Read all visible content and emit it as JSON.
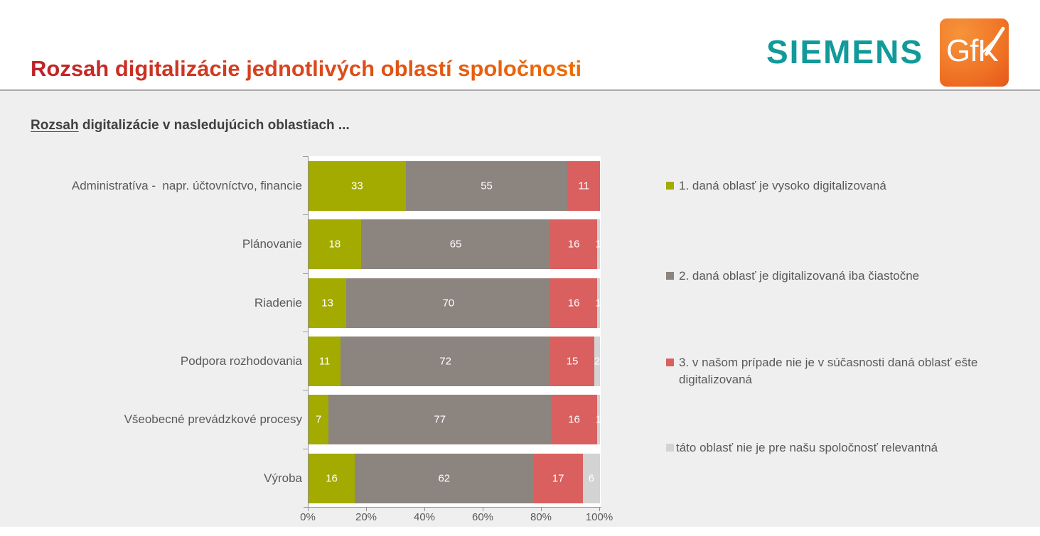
{
  "header": {
    "title": "Rozsah digitalizácie jednotlivých oblastí spoločnosti",
    "siemens_text": "SIEMENS",
    "gfk_text": "GfK"
  },
  "subtitle": {
    "underlined": "Rozsah",
    "rest": " digitalizácie v nasledujúcich oblastiach ..."
  },
  "colors": {
    "title_gradient_start": "#BF2126",
    "title_gradient_end": "#EE6D05",
    "siemens_teal": "#129A9A",
    "gfk_orange": "#EF6F1F",
    "content_background": "#EFEFEF",
    "segment_high": "#A3AB00",
    "segment_partial": "#8C847F",
    "segment_not_yet": "#D9605F",
    "segment_not_relevant": "#D3D3D3",
    "axis_text": "#595959"
  },
  "chart_data": {
    "type": "bar",
    "stacked": true,
    "orientation": "horizontal",
    "title": "Rozsah digitalizácie v nasledujúcich oblastiach ...",
    "categories": [
      "Administratíva -  napr. účtovníctvo, financie",
      "Plánovanie",
      "Riadenie",
      "Podpora rozhodovania",
      "Všeobecné prevádzkové procesy",
      "Výroba"
    ],
    "series": [
      {
        "name": "1. daná oblasť je vysoko digitalizovaná",
        "color": "#A3AB00",
        "values": [
          33,
          18,
          13,
          11,
          7,
          16
        ]
      },
      {
        "name": "2. daná oblasť je digitalizovaná iba čiastočne",
        "color": "#8C847F",
        "values": [
          55,
          65,
          70,
          72,
          77,
          62
        ]
      },
      {
        "name": "3. v našom prípade nie je v súčasnosti daná oblasť ešte digitalizovaná",
        "color": "#D9605F",
        "values": [
          11,
          16,
          16,
          15,
          16,
          17
        ]
      },
      {
        "name": "táto oblasť nie je pre našu spoločnosť relevantná",
        "color": "#D3D3D3",
        "values": [
          null,
          1,
          1,
          2,
          1,
          6
        ]
      }
    ],
    "x_axis": {
      "min": 0,
      "max": 100,
      "ticks": [
        "0%",
        "20%",
        "40%",
        "60%",
        "80%",
        "100%"
      ]
    },
    "value_labels": "inside segments, white",
    "legend_position": "right",
    "grid": false
  }
}
